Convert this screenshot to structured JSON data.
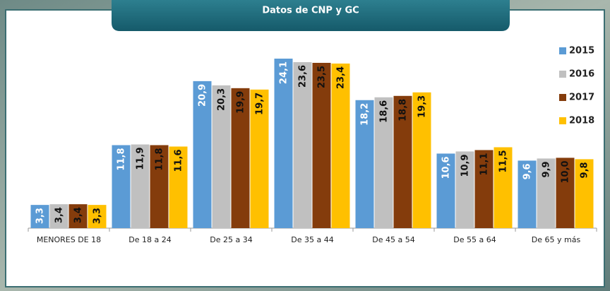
{
  "chart_data": {
    "type": "bar",
    "title": "Datos de CNP y GC",
    "categories": [
      "MENORES DE 18",
      "De 18 a 24",
      "De 25 a 34",
      "De 35 a 44",
      "De 45 a 54",
      "De 55 a 64",
      "De 65 y más"
    ],
    "series": [
      {
        "name": "2015",
        "color": "#5b9bd5",
        "values": [
          3.3,
          11.8,
          20.9,
          24.1,
          18.2,
          10.6,
          9.6
        ],
        "value_labels": [
          "3,3",
          "11,8",
          "20,9",
          "24,1",
          "18,2",
          "10,6",
          "9,6"
        ]
      },
      {
        "name": "2016",
        "color": "#c0c0c0",
        "values": [
          3.4,
          11.9,
          20.3,
          23.6,
          18.6,
          10.9,
          9.9
        ],
        "value_labels": [
          "3,4",
          "11,9",
          "20,3",
          "23,6",
          "18,6",
          "10,9",
          "9,9"
        ]
      },
      {
        "name": "2017",
        "color": "#843c0c",
        "values": [
          3.4,
          11.8,
          19.9,
          23.5,
          18.8,
          11.1,
          10.0
        ],
        "value_labels": [
          "3,4",
          "11,8",
          "19,9",
          "23,5",
          "18,8",
          "11,1",
          "10,0"
        ]
      },
      {
        "name": "2018",
        "color": "#ffc000",
        "values": [
          3.3,
          11.6,
          19.7,
          23.4,
          19.3,
          11.5,
          9.8
        ],
        "value_labels": [
          "3,3",
          "11,6",
          "19,7",
          "23,4",
          "19,3",
          "11,5",
          "9,8"
        ]
      }
    ],
    "legend": "right"
  }
}
